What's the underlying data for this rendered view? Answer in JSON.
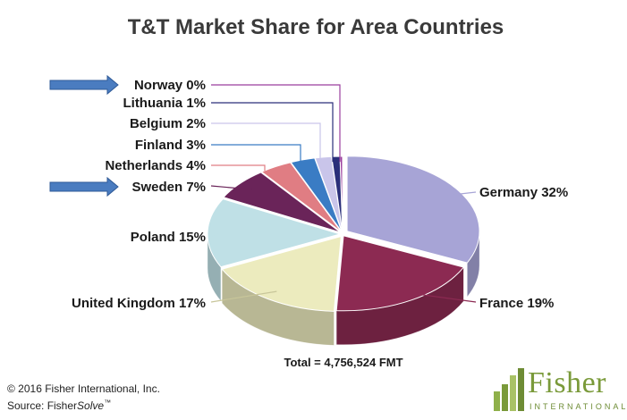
{
  "chart_data": {
    "type": "pie",
    "title": "T&T Market Share for Area Countries",
    "slices": [
      {
        "label": "Germany 32%",
        "name": "Germany",
        "value": 32,
        "color": "#a7a4d6"
      },
      {
        "label": "France 19%",
        "name": "France",
        "value": 19,
        "color": "#8c2a52"
      },
      {
        "label": "United Kingdom 17%",
        "name": "United Kingdom",
        "value": 17,
        "color": "#ecebbe"
      },
      {
        "label": "Poland 15%",
        "name": "Poland",
        "value": 15,
        "color": "#bfe0e6"
      },
      {
        "label": "Sweden 7%",
        "name": "Sweden",
        "value": 7,
        "color": "#6a2459"
      },
      {
        "label": "Netherlands 4%",
        "name": "Netherlands",
        "value": 4,
        "color": "#e07d83"
      },
      {
        "label": "Finland 3%",
        "name": "Finland",
        "value": 3,
        "color": "#3a7cc4"
      },
      {
        "label": "Belgium 2%",
        "name": "Belgium",
        "value": 2,
        "color": "#c9c5ea"
      },
      {
        "label": "Lithuania 1%",
        "name": "Lithuania",
        "value": 1,
        "color": "#2a2f7a"
      },
      {
        "label": "Norway 0%",
        "name": "Norway",
        "value": 0,
        "color": "#9b3f9e"
      }
    ],
    "highlighted": [
      "Norway",
      "Sweden"
    ],
    "total_label": "Total = 4,756,524 FMT"
  },
  "footer": {
    "copyright": "© 2016 Fisher International, Inc.",
    "source_prefix": "Source: Fisher",
    "source_italic": "Solve",
    "source_tm": "™"
  },
  "logo": {
    "word": "Fisher",
    "subtitle": "INTERNATIONAL",
    "color": "#7a9a3a"
  }
}
